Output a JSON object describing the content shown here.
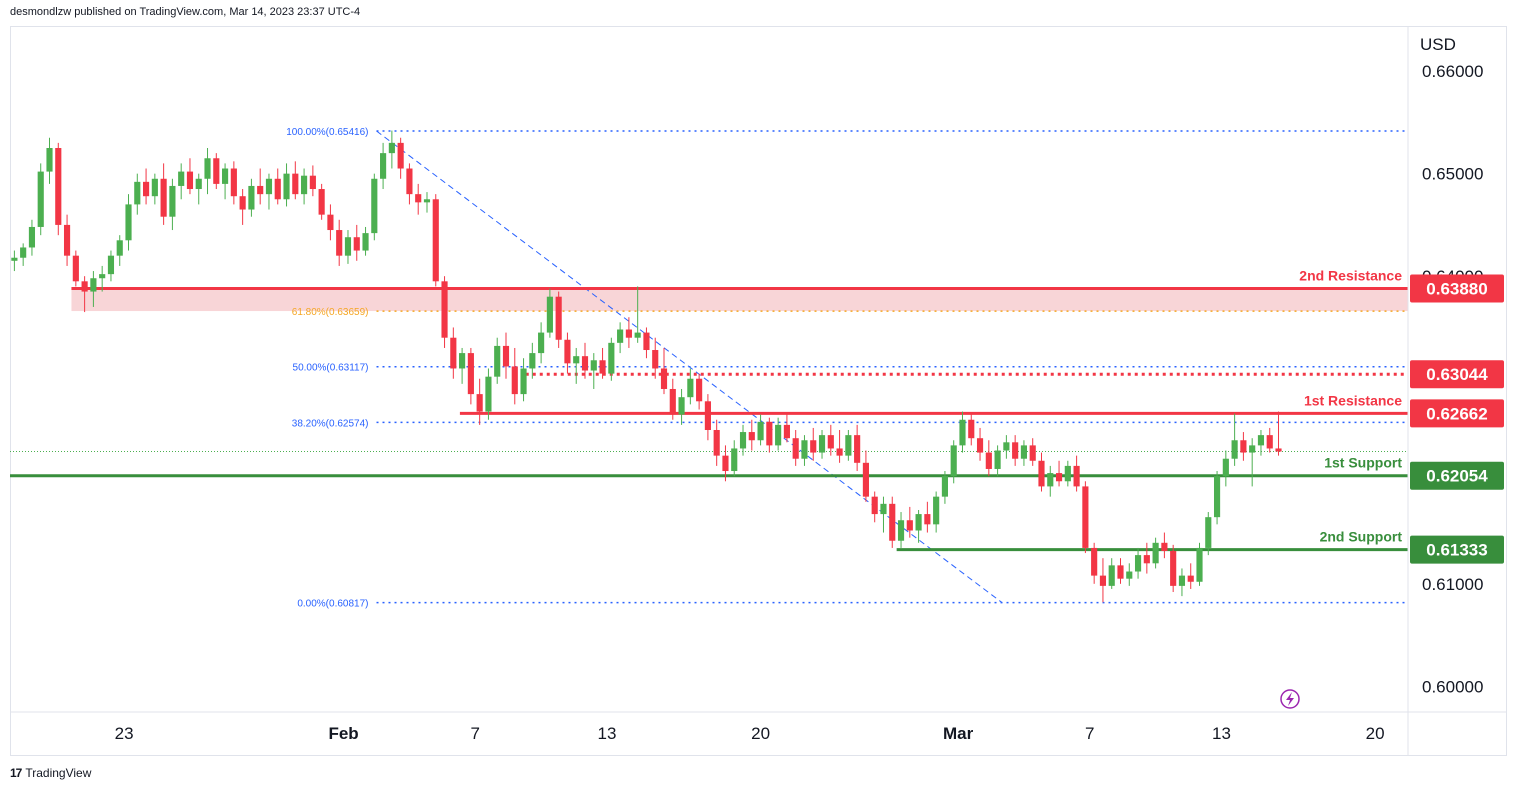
{
  "header": {
    "publisher_text": "desmondlzw published on TradingView.com, Mar 14, 2023 23:37 UTC-4"
  },
  "footer": {
    "brand": "TradingView",
    "mark": "17"
  },
  "colors": {
    "up": "#4caf50",
    "down": "#f23645",
    "resistance": "#f23645",
    "support": "#388e3c",
    "fib": "#2962ff",
    "fib618": "#f5a623",
    "zone": "#f8d5d7"
  },
  "chart_data": {
    "type": "candlestick",
    "currency": "USD",
    "y_ticks": [
      "0.66000",
      "0.65000",
      "0.64000",
      "0.61000",
      "0.60000"
    ],
    "ylim": [
      0.5975,
      0.6643
    ],
    "x_ticks": [
      {
        "label": "23",
        "day": -10
      },
      {
        "label": "Feb",
        "day": 0
      },
      {
        "label": "7",
        "day": 6
      },
      {
        "label": "13",
        "day": 12
      },
      {
        "label": "20",
        "day": 19
      },
      {
        "label": "Mar",
        "day": 28
      },
      {
        "label": "7",
        "day": 34
      },
      {
        "label": "13",
        "day": 40
      },
      {
        "label": "20",
        "day": 47
      }
    ],
    "xlim": [
      -15.2,
      48.5
    ],
    "levels": [
      {
        "name": "2nd Resistance",
        "value": 0.6388,
        "tag": "0.63880",
        "kind": "resistance",
        "from_day": -12.4,
        "style": "solid"
      },
      {
        "name": "",
        "value": 0.63044,
        "tag": "0.63044",
        "kind": "resistance",
        "from_day": 8.3,
        "style": "dotted"
      },
      {
        "name": "1st Resistance",
        "value": 0.62662,
        "tag": "0.62662",
        "kind": "resistance",
        "from_day": 5.3,
        "style": "solid"
      },
      {
        "name": "1st Support",
        "value": 0.62054,
        "tag": "0.62054",
        "kind": "support",
        "from_day": -15.2,
        "style": "solid"
      },
      {
        "name": "2nd Support",
        "value": 0.61333,
        "tag": "0.61333",
        "kind": "support",
        "from_day": 25.2,
        "style": "solid"
      }
    ],
    "resistance_zone": {
      "from_day": -12.4,
      "top": 0.6388,
      "bottom": 0.6366
    },
    "fibonacci": [
      {
        "label": "100.00%(0.65416)",
        "value": 0.65416
      },
      {
        "label": "61.80%(0.63659)",
        "value": 0.63659
      },
      {
        "label": "50.00%(0.63117)",
        "value": 0.63117
      },
      {
        "label": "38.20%(0.62574)",
        "value": 0.62574
      },
      {
        "label": "0.00%(0.60817)",
        "value": 0.60817
      }
    ],
    "fib_from_day": 1.5,
    "trendline": {
      "from": {
        "day": 1.5,
        "value": 0.65416
      },
      "to": {
        "day": 30.0,
        "value": 0.60817
      }
    },
    "last_price": 0.6229,
    "ohlc": [
      [
        -15.0,
        0.6415,
        0.6425,
        0.6405,
        0.6418
      ],
      [
        -14.6,
        0.6418,
        0.6432,
        0.641,
        0.6428
      ],
      [
        -14.2,
        0.6428,
        0.6455,
        0.642,
        0.6448
      ],
      [
        -13.8,
        0.6448,
        0.651,
        0.644,
        0.6502
      ],
      [
        -13.4,
        0.6502,
        0.6535,
        0.649,
        0.6525
      ],
      [
        -13.0,
        0.6525,
        0.653,
        0.644,
        0.645
      ],
      [
        -12.6,
        0.645,
        0.646,
        0.641,
        0.642
      ],
      [
        -12.2,
        0.642,
        0.6425,
        0.639,
        0.6395
      ],
      [
        -11.8,
        0.6395,
        0.64,
        0.6365,
        0.6385
      ],
      [
        -11.4,
        0.6385,
        0.6405,
        0.637,
        0.6398
      ],
      [
        -11.0,
        0.6398,
        0.641,
        0.6385,
        0.6402
      ],
      [
        -10.6,
        0.6402,
        0.6425,
        0.6395,
        0.642
      ],
      [
        -10.2,
        0.642,
        0.644,
        0.641,
        0.6435
      ],
      [
        -9.8,
        0.6435,
        0.648,
        0.6425,
        0.647
      ],
      [
        -9.4,
        0.647,
        0.65,
        0.646,
        0.6492
      ],
      [
        -9.0,
        0.6492,
        0.6505,
        0.647,
        0.6478
      ],
      [
        -8.6,
        0.6478,
        0.65,
        0.647,
        0.6495
      ],
      [
        -8.2,
        0.6495,
        0.651,
        0.645,
        0.6458
      ],
      [
        -7.8,
        0.6458,
        0.6495,
        0.6445,
        0.6488
      ],
      [
        -7.4,
        0.6488,
        0.651,
        0.6475,
        0.6502
      ],
      [
        -7.0,
        0.6502,
        0.6515,
        0.648,
        0.6485
      ],
      [
        -6.6,
        0.6485,
        0.65,
        0.647,
        0.6495
      ],
      [
        -6.2,
        0.6495,
        0.6525,
        0.648,
        0.6515
      ],
      [
        -5.8,
        0.6515,
        0.652,
        0.6485,
        0.649
      ],
      [
        -5.4,
        0.649,
        0.651,
        0.6475,
        0.6505
      ],
      [
        -5.0,
        0.6505,
        0.6512,
        0.647,
        0.6478
      ],
      [
        -4.6,
        0.6478,
        0.6485,
        0.645,
        0.6465
      ],
      [
        -4.2,
        0.6465,
        0.6495,
        0.6458,
        0.6488
      ],
      [
        -3.8,
        0.6488,
        0.6505,
        0.647,
        0.648
      ],
      [
        -3.4,
        0.648,
        0.65,
        0.6465,
        0.6495
      ],
      [
        -3.0,
        0.6495,
        0.6505,
        0.647,
        0.6475
      ],
      [
        -2.6,
        0.6475,
        0.651,
        0.6468,
        0.65
      ],
      [
        -2.2,
        0.65,
        0.6512,
        0.6475,
        0.648
      ],
      [
        -1.8,
        0.648,
        0.6505,
        0.647,
        0.6498
      ],
      [
        -1.4,
        0.6498,
        0.6508,
        0.6478,
        0.6485
      ],
      [
        -1.0,
        0.6485,
        0.649,
        0.6455,
        0.646
      ],
      [
        -0.6,
        0.646,
        0.647,
        0.6435,
        0.6445
      ],
      [
        -0.2,
        0.6445,
        0.6455,
        0.641,
        0.642
      ],
      [
        0.2,
        0.642,
        0.6445,
        0.6412,
        0.6438
      ],
      [
        0.6,
        0.6438,
        0.645,
        0.6415,
        0.6425
      ],
      [
        1.0,
        0.6425,
        0.6448,
        0.642,
        0.6442
      ],
      [
        1.4,
        0.6442,
        0.65,
        0.6435,
        0.6495
      ],
      [
        1.8,
        0.6495,
        0.653,
        0.6485,
        0.652
      ],
      [
        2.2,
        0.652,
        0.6542,
        0.6505,
        0.653
      ],
      [
        2.6,
        0.653,
        0.6535,
        0.6495,
        0.6505
      ],
      [
        3.0,
        0.6505,
        0.651,
        0.647,
        0.648
      ],
      [
        3.4,
        0.648,
        0.649,
        0.646,
        0.6472
      ],
      [
        3.8,
        0.6472,
        0.6482,
        0.6462,
        0.6475
      ],
      [
        4.2,
        0.6475,
        0.648,
        0.639,
        0.6395
      ],
      [
        4.6,
        0.6395,
        0.64,
        0.633,
        0.634
      ],
      [
        5.0,
        0.634,
        0.635,
        0.63,
        0.631
      ],
      [
        5.4,
        0.631,
        0.633,
        0.6295,
        0.6325
      ],
      [
        5.8,
        0.6325,
        0.633,
        0.6275,
        0.6285
      ],
      [
        6.2,
        0.6285,
        0.63,
        0.6255,
        0.6268
      ],
      [
        6.6,
        0.6268,
        0.631,
        0.626,
        0.6302
      ],
      [
        7.0,
        0.6302,
        0.634,
        0.6295,
        0.6332
      ],
      [
        7.4,
        0.6332,
        0.6345,
        0.63,
        0.6312
      ],
      [
        7.8,
        0.6312,
        0.633,
        0.6275,
        0.6285
      ],
      [
        8.2,
        0.6285,
        0.632,
        0.6278,
        0.631
      ],
      [
        8.6,
        0.631,
        0.6335,
        0.63,
        0.6325
      ],
      [
        9.0,
        0.6325,
        0.6355,
        0.6315,
        0.6345
      ],
      [
        9.4,
        0.6345,
        0.6388,
        0.634,
        0.638
      ],
      [
        9.8,
        0.638,
        0.6385,
        0.633,
        0.6338
      ],
      [
        10.2,
        0.6338,
        0.6345,
        0.6305,
        0.6315
      ],
      [
        10.6,
        0.6315,
        0.633,
        0.6295,
        0.6322
      ],
      [
        11.0,
        0.6322,
        0.6335,
        0.63,
        0.6308
      ],
      [
        11.4,
        0.6308,
        0.6325,
        0.629,
        0.6318
      ],
      [
        11.8,
        0.6318,
        0.633,
        0.63,
        0.6305
      ],
      [
        12.2,
        0.6305,
        0.634,
        0.6298,
        0.6335
      ],
      [
        12.6,
        0.6335,
        0.6355,
        0.6325,
        0.6348
      ],
      [
        13.0,
        0.6348,
        0.636,
        0.633,
        0.634
      ],
      [
        13.4,
        0.634,
        0.639,
        0.6335,
        0.6345
      ],
      [
        13.8,
        0.6345,
        0.635,
        0.632,
        0.6328
      ],
      [
        14.2,
        0.6328,
        0.634,
        0.63,
        0.631
      ],
      [
        14.6,
        0.631,
        0.633,
        0.6285,
        0.629
      ],
      [
        15.0,
        0.629,
        0.63,
        0.626,
        0.6265
      ],
      [
        15.4,
        0.6265,
        0.629,
        0.6255,
        0.6282
      ],
      [
        15.8,
        0.6282,
        0.631,
        0.6275,
        0.63
      ],
      [
        16.2,
        0.63,
        0.6305,
        0.627,
        0.6278
      ],
      [
        16.6,
        0.6278,
        0.6285,
        0.624,
        0.625
      ],
      [
        17.0,
        0.625,
        0.626,
        0.6215,
        0.6225
      ],
      [
        17.4,
        0.6225,
        0.6235,
        0.62,
        0.621
      ],
      [
        17.8,
        0.621,
        0.624,
        0.6205,
        0.6232
      ],
      [
        18.2,
        0.6232,
        0.6255,
        0.6225,
        0.6248
      ],
      [
        18.6,
        0.6248,
        0.626,
        0.623,
        0.624
      ],
      [
        19.0,
        0.624,
        0.6265,
        0.6235,
        0.6258
      ],
      [
        19.4,
        0.6258,
        0.6262,
        0.6228,
        0.6235
      ],
      [
        19.8,
        0.6235,
        0.6262,
        0.623,
        0.6255
      ],
      [
        20.2,
        0.6255,
        0.6266,
        0.6238,
        0.6242
      ],
      [
        20.6,
        0.6242,
        0.625,
        0.6215,
        0.6222
      ],
      [
        21.0,
        0.6222,
        0.6245,
        0.6215,
        0.624
      ],
      [
        21.4,
        0.624,
        0.6252,
        0.622,
        0.6228
      ],
      [
        21.8,
        0.6228,
        0.625,
        0.6222,
        0.6245
      ],
      [
        22.2,
        0.6245,
        0.6255,
        0.6225,
        0.6232
      ],
      [
        22.6,
        0.6232,
        0.625,
        0.6218,
        0.6225
      ],
      [
        23.0,
        0.6225,
        0.625,
        0.622,
        0.6245
      ],
      [
        23.4,
        0.6245,
        0.6255,
        0.621,
        0.6218
      ],
      [
        23.8,
        0.6218,
        0.623,
        0.618,
        0.6185
      ],
      [
        24.2,
        0.6185,
        0.619,
        0.616,
        0.6168
      ],
      [
        24.6,
        0.6168,
        0.6185,
        0.615,
        0.6178
      ],
      [
        25.0,
        0.6178,
        0.6185,
        0.6135,
        0.6142
      ],
      [
        25.4,
        0.6142,
        0.617,
        0.6135,
        0.6162
      ],
      [
        25.8,
        0.6162,
        0.6175,
        0.6145,
        0.6152
      ],
      [
        26.2,
        0.6152,
        0.6172,
        0.614,
        0.6168
      ],
      [
        26.6,
        0.6168,
        0.618,
        0.615,
        0.6158
      ],
      [
        27.0,
        0.6158,
        0.619,
        0.615,
        0.6185
      ],
      [
        27.4,
        0.6185,
        0.621,
        0.6178,
        0.6205
      ],
      [
        27.8,
        0.6205,
        0.624,
        0.6198,
        0.6235
      ],
      [
        28.2,
        0.6235,
        0.6268,
        0.6228,
        0.626
      ],
      [
        28.6,
        0.626,
        0.6266,
        0.6235,
        0.6242
      ],
      [
        29.0,
        0.6242,
        0.6252,
        0.622,
        0.6228
      ],
      [
        29.4,
        0.6228,
        0.624,
        0.6205,
        0.6212
      ],
      [
        29.8,
        0.6212,
        0.6235,
        0.6205,
        0.623
      ],
      [
        30.2,
        0.623,
        0.6245,
        0.6222,
        0.6238
      ],
      [
        30.6,
        0.6238,
        0.6245,
        0.6215,
        0.6222
      ],
      [
        31.0,
        0.6222,
        0.624,
        0.6215,
        0.6235
      ],
      [
        31.4,
        0.6235,
        0.6242,
        0.6215,
        0.622
      ],
      [
        31.8,
        0.622,
        0.6228,
        0.619,
        0.6195
      ],
      [
        32.2,
        0.6195,
        0.6215,
        0.6185,
        0.6208
      ],
      [
        32.6,
        0.6208,
        0.622,
        0.6195,
        0.62
      ],
      [
        33.0,
        0.62,
        0.622,
        0.6195,
        0.6215
      ],
      [
        33.4,
        0.6215,
        0.6225,
        0.619,
        0.6195
      ],
      [
        33.8,
        0.6195,
        0.62,
        0.613,
        0.6135
      ],
      [
        34.2,
        0.6135,
        0.614,
        0.61,
        0.6108
      ],
      [
        34.6,
        0.6108,
        0.6125,
        0.6082,
        0.6098
      ],
      [
        35.0,
        0.6098,
        0.6125,
        0.6095,
        0.6118
      ],
      [
        35.4,
        0.6118,
        0.6125,
        0.61,
        0.6105
      ],
      [
        35.8,
        0.6105,
        0.612,
        0.6098,
        0.6112
      ],
      [
        36.2,
        0.6112,
        0.6135,
        0.6105,
        0.6128
      ],
      [
        36.6,
        0.6128,
        0.614,
        0.611,
        0.612
      ],
      [
        37.0,
        0.612,
        0.6145,
        0.6115,
        0.614
      ],
      [
        37.4,
        0.614,
        0.615,
        0.6125,
        0.6132
      ],
      [
        37.8,
        0.6132,
        0.6138,
        0.6092,
        0.6098
      ],
      [
        38.2,
        0.6098,
        0.6115,
        0.6088,
        0.6108
      ],
      [
        38.6,
        0.6108,
        0.612,
        0.6095,
        0.6102
      ],
      [
        39.0,
        0.6102,
        0.614,
        0.6098,
        0.6135
      ],
      [
        39.4,
        0.6135,
        0.617,
        0.6128,
        0.6165
      ],
      [
        39.8,
        0.6165,
        0.621,
        0.6158,
        0.6205
      ],
      [
        40.2,
        0.6205,
        0.623,
        0.6195,
        0.6222
      ],
      [
        40.6,
        0.6222,
        0.6266,
        0.6215,
        0.624
      ],
      [
        41.0,
        0.624,
        0.6248,
        0.622,
        0.6228
      ],
      [
        41.4,
        0.6228,
        0.6242,
        0.6195,
        0.6235
      ],
      [
        41.8,
        0.6235,
        0.625,
        0.6225,
        0.6245
      ],
      [
        42.2,
        0.6245,
        0.6252,
        0.6228,
        0.6232
      ],
      [
        42.6,
        0.6232,
        0.6268,
        0.6225,
        0.6229
      ]
    ]
  }
}
